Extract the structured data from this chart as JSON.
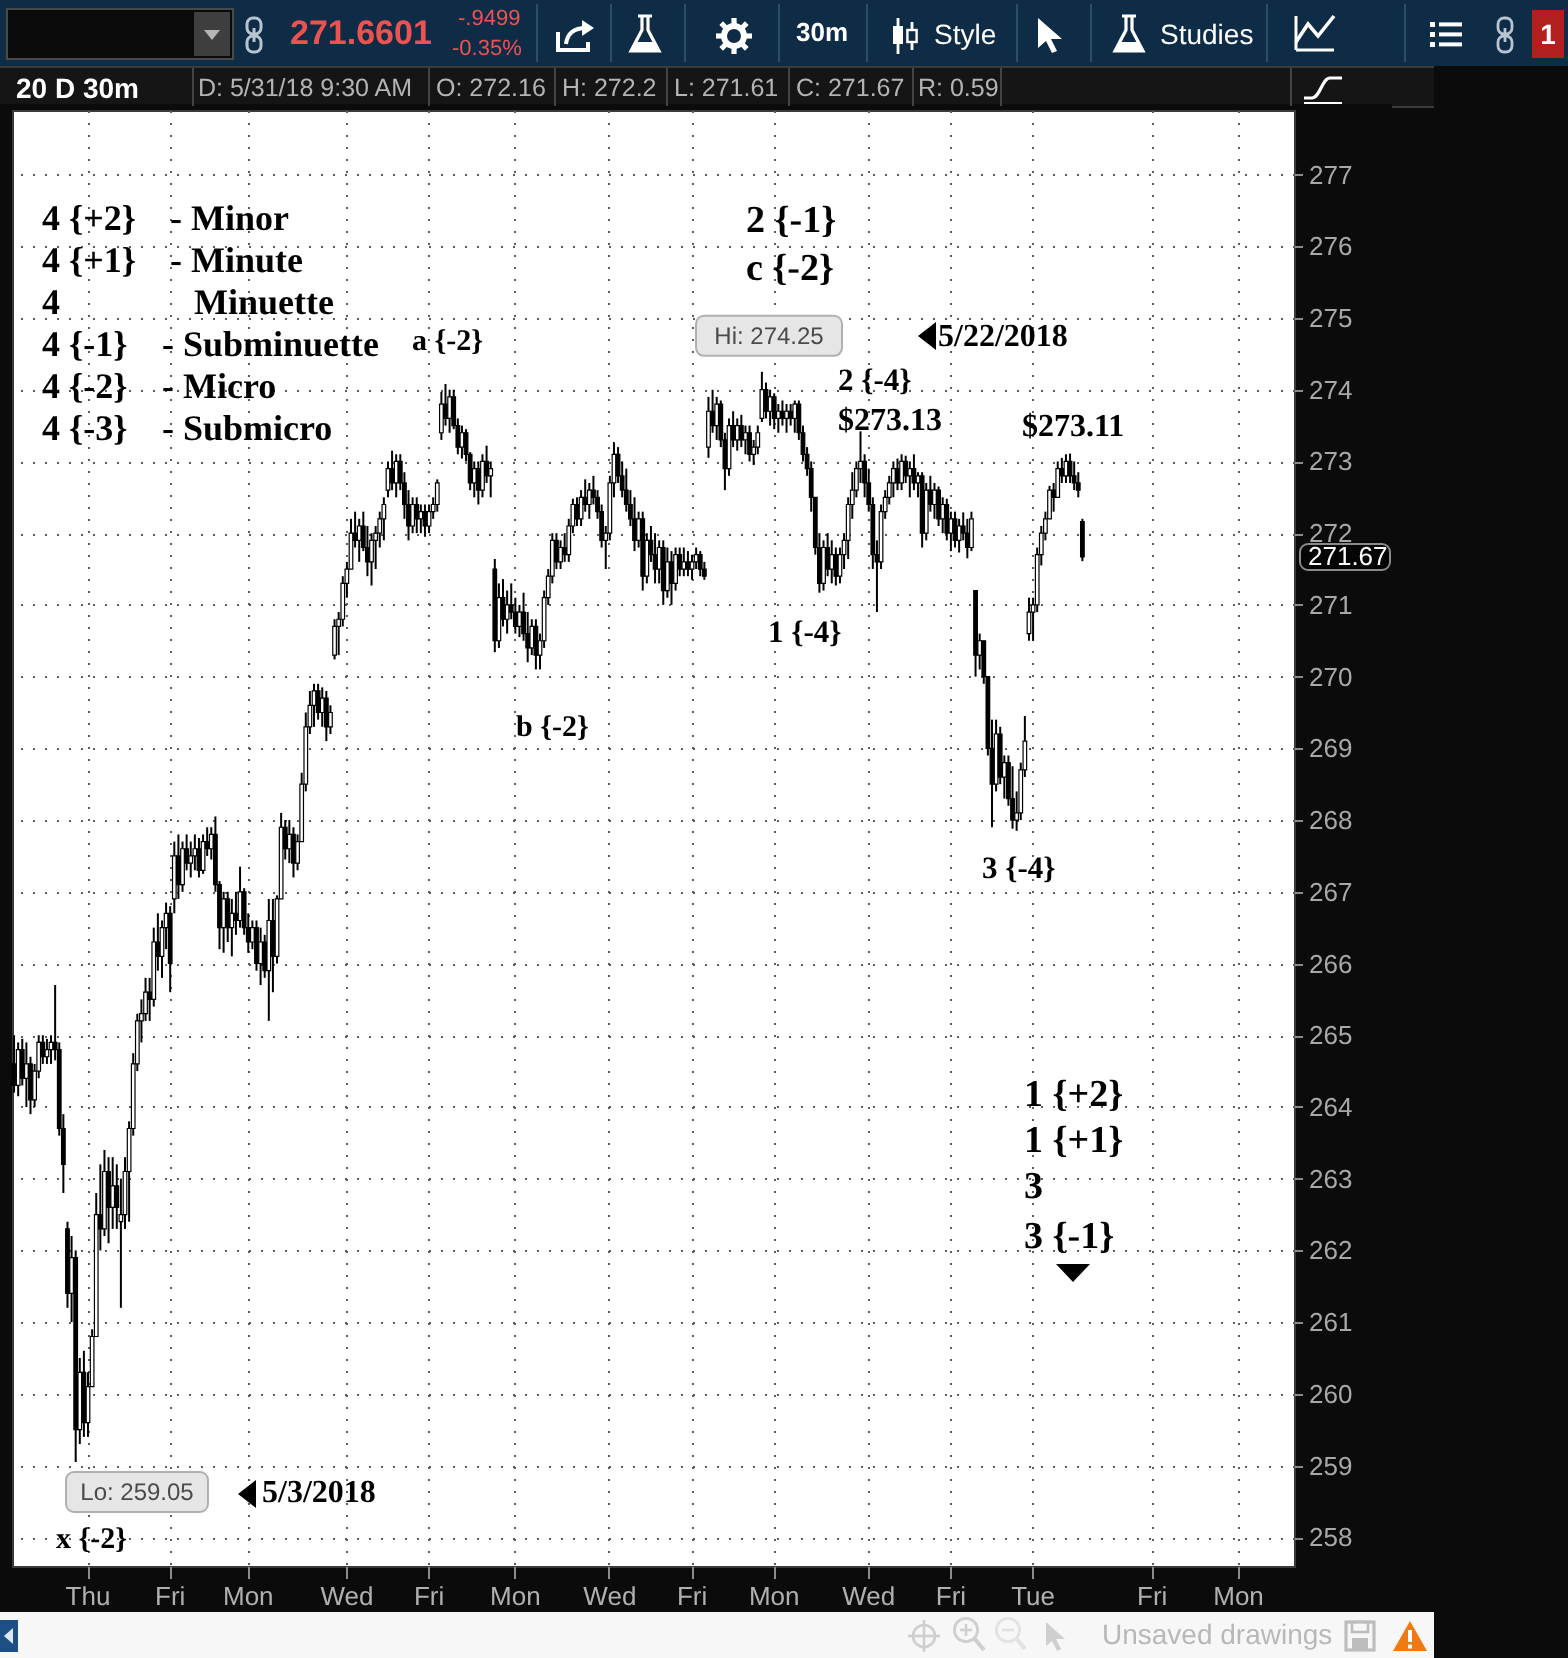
{
  "chart_data": {
    "type": "candlestick",
    "title": "20 D 30m",
    "color": "#000000",
    "grid": true,
    "ylim": [
      257.6,
      277.9
    ],
    "yticks": [
      258,
      259,
      260,
      261,
      262,
      263,
      264,
      265,
      266,
      267,
      268,
      269,
      270,
      271,
      272,
      273,
      274,
      275,
      276,
      277
    ],
    "categories": [
      null,
      null,
      null,
      null,
      null,
      null,
      null,
      null,
      null,
      null,
      null,
      null,
      null,
      null,
      null,
      null,
      null,
      null,
      "Thu",
      null,
      null,
      null,
      null,
      null,
      null,
      null,
      null,
      null,
      null,
      null,
      null,
      null,
      null,
      null,
      null,
      null,
      null,
      null,
      "Fri",
      null,
      null,
      null,
      null,
      null,
      null,
      null,
      null,
      null,
      null,
      null,
      null,
      null,
      null,
      null,
      null,
      null,
      null,
      "Mon",
      null,
      null,
      null,
      null,
      null,
      null,
      null,
      null,
      null,
      null,
      null,
      null,
      null,
      null,
      null,
      null,
      null,
      null,
      null,
      null,
      null,
      null,
      null,
      "Wed",
      null,
      null,
      null,
      null,
      null,
      null,
      null,
      null,
      null,
      null,
      null,
      null,
      null,
      null,
      null,
      null,
      null,
      null,
      null,
      "Fri",
      null,
      null,
      null,
      null,
      null,
      null,
      null,
      null,
      null,
      null,
      null,
      null,
      null,
      null,
      null,
      null,
      null,
      null,
      null,
      null,
      "Mon",
      null,
      null,
      null,
      null,
      null,
      null,
      null,
      null,
      null,
      null,
      null,
      null,
      null,
      null,
      null,
      null,
      null,
      null,
      null,
      null,
      null,
      null,
      "Wed",
      null,
      null,
      null,
      null,
      null,
      null,
      null,
      null,
      null,
      null,
      null,
      null,
      null,
      null,
      null,
      null,
      null,
      null,
      null,
      "Fri",
      null,
      null,
      null,
      null,
      null,
      null,
      null,
      null,
      null,
      null,
      null,
      null,
      null,
      null,
      null,
      null,
      null,
      null,
      null,
      "Mon",
      null,
      null,
      null,
      null,
      null,
      null,
      null,
      null,
      null,
      null,
      null,
      null,
      null,
      null,
      null,
      null,
      null,
      null,
      null,
      null,
      null,
      null,
      "Wed",
      null,
      null,
      null,
      null,
      null,
      null,
      null,
      null,
      null,
      null,
      null,
      null,
      null,
      null,
      null,
      null,
      null,
      null,
      null,
      "Fri",
      null,
      null,
      null,
      null,
      null,
      null,
      null,
      null,
      null,
      null,
      null,
      null,
      null,
      null,
      null,
      null,
      null,
      null,
      null,
      "Tue",
      null,
      null,
      null,
      null,
      null,
      null,
      null,
      null,
      null,
      null,
      null,
      null,
      null,
      null,
      null,
      null,
      null,
      null,
      null,
      null,
      null,
      null,
      null,
      null,
      null,
      null,
      null,
      null,
      "Fri",
      null,
      null,
      null,
      null,
      null,
      null,
      null,
      null,
      null,
      null,
      null,
      null,
      null,
      null,
      null,
      null,
      null,
      null,
      null,
      null,
      "Mon",
      null,
      null,
      null,
      null,
      null,
      null,
      null,
      null,
      null,
      null,
      null,
      null,
      null
    ],
    "ohlc": [
      [
        264.6,
        265.0,
        264.2,
        264.3
      ],
      [
        264.3,
        264.9,
        264.15,
        264.8
      ],
      [
        264.8,
        264.95,
        264.3,
        264.4
      ],
      [
        264.4,
        264.9,
        264.0,
        264.6
      ],
      [
        264.6,
        264.7,
        263.9,
        264.1
      ],
      [
        264.1,
        264.6,
        264.0,
        264.5
      ],
      [
        264.5,
        265.0,
        264.4,
        264.9
      ],
      [
        264.9,
        265.0,
        264.6,
        264.7
      ],
      [
        264.7,
        264.95,
        264.6,
        264.8
      ],
      [
        264.8,
        265.0,
        264.6,
        264.9
      ],
      [
        264.9,
        265.7,
        264.65,
        264.8
      ],
      [
        264.8,
        264.9,
        263.6,
        263.7
      ],
      [
        263.7,
        263.9,
        262.8,
        263.2
      ],
      [
        262.3,
        262.4,
        261.2,
        261.4
      ],
      [
        261.4,
        262.2,
        261.0,
        261.9
      ],
      [
        261.9,
        262.0,
        259.05,
        259.5
      ],
      [
        259.5,
        260.5,
        259.3,
        260.3
      ],
      [
        260.3,
        260.6,
        259.4,
        259.6
      ],
      [
        259.6,
        260.3,
        259.4,
        260.1
      ],
      [
        260.1,
        260.9,
        260.1,
        260.8
      ],
      [
        260.8,
        262.8,
        260.8,
        262.5
      ],
      [
        262.5,
        263.2,
        262.0,
        262.3
      ],
      [
        262.3,
        263.4,
        262.2,
        263.1
      ],
      [
        263.1,
        263.3,
        262.1,
        262.6
      ],
      [
        262.6,
        263.3,
        262.3,
        262.9
      ],
      [
        262.9,
        263.2,
        262.3,
        262.6
      ],
      [
        262.4,
        263.0,
        261.2,
        262.5
      ],
      [
        262.5,
        263.3,
        262.3,
        263.1
      ],
      [
        263.1,
        263.8,
        262.4,
        263.7
      ],
      [
        263.7,
        264.75,
        263.6,
        264.6
      ],
      [
        264.6,
        265.3,
        264.5,
        265.2
      ],
      [
        265.2,
        265.5,
        264.9,
        265.3
      ],
      [
        265.3,
        265.8,
        265.2,
        265.6
      ],
      [
        265.6,
        265.8,
        265.2,
        265.5
      ],
      [
        265.5,
        266.5,
        265.4,
        266.3
      ],
      [
        266.3,
        266.7,
        265.9,
        266.1
      ],
      [
        266.1,
        266.6,
        265.8,
        266.5
      ],
      [
        266.5,
        266.85,
        266.2,
        266.7
      ],
      [
        266.7,
        266.8,
        265.6,
        266.0
      ],
      [
        266.9,
        267.7,
        266.7,
        267.5
      ],
      [
        267.5,
        267.8,
        266.9,
        267.1
      ],
      [
        267.1,
        267.7,
        267.0,
        267.6
      ],
      [
        267.6,
        267.8,
        267.3,
        267.4
      ],
      [
        267.4,
        267.7,
        267.2,
        267.5
      ],
      [
        267.5,
        267.8,
        267.3,
        267.6
      ],
      [
        267.6,
        267.75,
        267.2,
        267.3
      ],
      [
        267.3,
        267.8,
        267.25,
        267.7
      ],
      [
        267.7,
        267.9,
        267.5,
        267.6
      ],
      [
        267.6,
        267.9,
        267.45,
        267.8
      ],
      [
        267.8,
        268.05,
        267.0,
        267.1
      ],
      [
        267.1,
        267.15,
        266.2,
        266.5
      ],
      [
        266.5,
        267.0,
        266.15,
        266.9
      ],
      [
        266.9,
        267.0,
        266.3,
        266.5
      ],
      [
        266.5,
        266.9,
        266.1,
        266.7
      ],
      [
        266.7,
        267.0,
        266.4,
        266.6
      ],
      [
        266.6,
        267.35,
        266.5,
        267.0
      ],
      [
        267.0,
        267.05,
        266.4,
        266.5
      ],
      [
        266.5,
        266.7,
        266.15,
        266.3
      ],
      [
        266.3,
        266.6,
        266.2,
        266.5
      ],
      [
        266.5,
        266.6,
        265.9,
        266.0
      ],
      [
        266.0,
        266.5,
        265.7,
        266.3
      ],
      [
        266.3,
        266.4,
        265.8,
        265.9
      ],
      [
        265.9,
        266.9,
        265.2,
        266.6
      ],
      [
        266.6,
        266.9,
        265.6,
        266.1
      ],
      [
        266.1,
        266.95,
        266.0,
        266.9
      ],
      [
        266.9,
        268.1,
        266.9,
        267.9
      ],
      [
        267.9,
        268.0,
        267.45,
        267.6
      ],
      [
        267.6,
        268.0,
        267.4,
        267.8
      ],
      [
        267.8,
        267.9,
        267.2,
        267.4
      ],
      [
        267.4,
        267.8,
        267.3,
        267.7
      ],
      [
        267.7,
        268.66,
        267.7,
        268.5
      ],
      [
        268.5,
        269.5,
        268.4,
        269.3
      ],
      [
        269.3,
        269.8,
        269.2,
        269.6
      ],
      [
        269.6,
        269.9,
        269.3,
        269.8
      ],
      [
        269.8,
        269.9,
        269.4,
        269.5
      ],
      [
        269.5,
        269.85,
        269.3,
        269.7
      ],
      [
        269.7,
        269.8,
        269.1,
        269.3
      ],
      [
        269.3,
        269.6,
        269.2,
        269.5
      ],
      [
        270.3,
        270.8,
        270.24,
        270.7
      ],
      [
        270.7,
        270.9,
        270.3,
        270.8
      ],
      [
        270.8,
        271.4,
        270.7,
        271.3
      ],
      [
        271.3,
        271.6,
        271.1,
        271.5
      ],
      [
        271.5,
        272.2,
        271.5,
        272.0
      ],
      [
        272.0,
        272.3,
        271.8,
        271.9
      ],
      [
        271.9,
        272.2,
        271.6,
        272.1
      ],
      [
        272.1,
        272.3,
        271.75,
        271.8
      ],
      [
        271.8,
        272.1,
        271.4,
        271.6
      ],
      [
        271.6,
        272.0,
        271.27,
        271.9
      ],
      [
        271.9,
        272.1,
        271.5,
        272.0
      ],
      [
        272.0,
        272.3,
        271.8,
        272.2
      ],
      [
        272.2,
        272.5,
        271.9,
        272.4
      ],
      [
        272.6,
        273.0,
        272.5,
        272.9
      ],
      [
        272.9,
        273.15,
        272.6,
        272.7
      ],
      [
        272.7,
        273.1,
        272.5,
        273.0
      ],
      [
        273.0,
        273.1,
        272.6,
        272.7
      ],
      [
        272.7,
        272.85,
        272.2,
        272.4
      ],
      [
        272.4,
        272.6,
        271.9,
        272.1
      ],
      [
        272.1,
        272.5,
        272.0,
        272.4
      ],
      [
        272.4,
        272.5,
        272.0,
        272.2
      ],
      [
        272.2,
        272.4,
        272.0,
        272.3
      ],
      [
        272.3,
        272.4,
        271.95,
        272.1
      ],
      [
        272.1,
        272.4,
        272.0,
        272.3
      ],
      [
        272.3,
        272.5,
        272.2,
        272.4
      ],
      [
        272.4,
        272.75,
        272.3,
        272.7
      ],
      [
        273.4,
        273.97,
        273.3,
        273.8
      ],
      [
        273.8,
        274.08,
        273.5,
        273.6
      ],
      [
        273.6,
        274.0,
        273.4,
        273.9
      ],
      [
        273.9,
        274.0,
        273.45,
        273.5
      ],
      [
        273.5,
        273.6,
        273.1,
        273.2
      ],
      [
        273.2,
        273.5,
        273.04,
        273.4
      ],
      [
        273.4,
        273.45,
        273.0,
        273.1
      ],
      [
        273.1,
        273.13,
        272.6,
        272.7
      ],
      [
        272.7,
        273.0,
        272.5,
        272.9
      ],
      [
        272.9,
        273.0,
        272.4,
        272.6
      ],
      [
        272.6,
        273.1,
        272.5,
        273.0
      ],
      [
        273.0,
        273.22,
        272.7,
        272.8
      ],
      [
        272.8,
        273.0,
        272.5,
        272.9
      ],
      [
        271.5,
        271.64,
        270.34,
        270.5
      ],
      [
        270.5,
        271.3,
        270.4,
        271.1
      ],
      [
        271.1,
        271.36,
        270.7,
        270.8
      ],
      [
        270.8,
        271.2,
        270.6,
        271.0
      ],
      [
        271.0,
        271.3,
        270.8,
        270.9
      ],
      [
        270.9,
        271.1,
        270.6,
        270.7
      ],
      [
        270.7,
        271.0,
        270.55,
        270.9
      ],
      [
        270.9,
        271.17,
        270.5,
        270.6
      ],
      [
        270.6,
        270.9,
        270.2,
        270.4
      ],
      [
        270.4,
        270.8,
        270.3,
        270.7
      ],
      [
        270.7,
        270.8,
        270.1,
        270.3
      ],
      [
        270.3,
        270.6,
        270.1,
        270.5
      ],
      [
        270.5,
        271.2,
        270.4,
        271.1
      ],
      [
        271.1,
        271.5,
        271.0,
        271.4
      ],
      [
        271.4,
        272.0,
        271.3,
        271.9
      ],
      [
        271.9,
        272.0,
        271.5,
        271.6
      ],
      [
        271.6,
        271.9,
        271.5,
        271.8
      ],
      [
        271.8,
        272.0,
        271.6,
        271.7
      ],
      [
        271.7,
        272.2,
        271.6,
        272.1
      ],
      [
        272.1,
        272.48,
        272.0,
        272.4
      ],
      [
        272.4,
        272.5,
        272.1,
        272.2
      ],
      [
        272.2,
        272.6,
        272.1,
        272.5
      ],
      [
        272.5,
        272.75,
        272.3,
        272.4
      ],
      [
        272.4,
        272.7,
        272.2,
        272.6
      ],
      [
        272.6,
        272.8,
        272.4,
        272.5
      ],
      [
        272.5,
        272.6,
        272.2,
        272.3
      ],
      [
        272.3,
        272.4,
        271.8,
        271.9
      ],
      [
        271.9,
        272.1,
        271.5,
        272.0
      ],
      [
        272.0,
        272.8,
        271.9,
        272.7
      ],
      [
        272.7,
        273.27,
        272.5,
        273.1
      ],
      [
        273.1,
        273.2,
        272.7,
        272.8
      ],
      [
        272.8,
        273.0,
        272.5,
        272.6
      ],
      [
        272.6,
        272.9,
        272.3,
        272.4
      ],
      [
        272.4,
        272.6,
        272.1,
        272.2
      ],
      [
        272.2,
        272.5,
        271.75,
        271.9
      ],
      [
        271.9,
        272.3,
        271.8,
        272.2
      ],
      [
        272.2,
        272.3,
        271.2,
        271.4
      ],
      [
        271.4,
        272.0,
        271.3,
        271.9
      ],
      [
        271.9,
        272.1,
        271.6,
        271.7
      ],
      [
        271.7,
        272.0,
        271.3,
        271.5
      ],
      [
        271.5,
        271.9,
        271.3,
        271.8
      ],
      [
        271.8,
        271.9,
        271.0,
        271.2
      ],
      [
        271.2,
        271.8,
        271.1,
        271.6
      ],
      [
        271.6,
        271.75,
        271.0,
        271.3
      ],
      [
        271.3,
        271.8,
        271.2,
        271.7
      ],
      [
        271.7,
        271.8,
        271.4,
        271.5
      ],
      [
        271.5,
        271.8,
        271.4,
        271.6
      ],
      [
        271.6,
        271.75,
        271.4,
        271.5
      ],
      [
        271.5,
        271.7,
        271.35,
        271.6
      ],
      [
        271.6,
        271.8,
        271.5,
        271.7
      ],
      [
        271.7,
        271.75,
        271.4,
        271.5
      ],
      [
        271.5,
        271.6,
        271.35,
        271.4
      ],
      [
        273.2,
        273.9,
        273.05,
        273.7
      ],
      [
        273.7,
        274.0,
        273.4,
        273.5
      ],
      [
        273.5,
        273.9,
        273.3,
        273.8
      ],
      [
        273.8,
        273.85,
        273.2,
        273.3
      ],
      [
        273.3,
        273.4,
        272.6,
        272.9
      ],
      [
        272.9,
        273.6,
        272.8,
        273.5
      ],
      [
        273.5,
        273.7,
        273.2,
        273.3
      ],
      [
        273.3,
        273.6,
        273.15,
        273.5
      ],
      [
        273.5,
        273.65,
        273.2,
        273.3
      ],
      [
        273.3,
        273.5,
        273.1,
        273.4
      ],
      [
        273.4,
        273.5,
        273.0,
        273.1
      ],
      [
        273.1,
        273.3,
        272.95,
        273.2
      ],
      [
        273.2,
        273.5,
        273.1,
        273.4
      ],
      [
        273.6,
        274.25,
        273.55,
        274.0
      ],
      [
        274.0,
        274.1,
        273.6,
        273.7
      ],
      [
        273.7,
        274.0,
        273.5,
        273.9
      ],
      [
        273.9,
        273.95,
        273.45,
        273.6
      ],
      [
        273.6,
        273.8,
        273.4,
        273.7
      ],
      [
        273.7,
        273.85,
        273.5,
        273.6
      ],
      [
        273.6,
        273.8,
        273.4,
        273.7
      ],
      [
        273.7,
        273.8,
        273.5,
        273.6
      ],
      [
        273.6,
        273.85,
        273.4,
        273.8
      ],
      [
        273.8,
        273.85,
        273.3,
        273.4
      ],
      [
        273.4,
        273.5,
        273.0,
        273.1
      ],
      [
        273.1,
        273.2,
        272.8,
        272.9
      ],
      [
        272.9,
        273.0,
        272.3,
        272.5
      ],
      [
        272.5,
        272.5,
        271.7,
        271.8
      ],
      [
        271.8,
        272.0,
        271.17,
        271.3
      ],
      [
        271.3,
        271.9,
        271.2,
        271.8
      ],
      [
        271.8,
        272.0,
        271.4,
        271.5
      ],
      [
        271.5,
        271.9,
        271.3,
        271.7
      ],
      [
        271.7,
        271.8,
        271.27,
        271.4
      ],
      [
        271.4,
        271.8,
        271.3,
        271.7
      ],
      [
        271.7,
        272.0,
        271.5,
        271.9
      ],
      [
        271.9,
        272.5,
        271.64,
        272.4
      ],
      [
        272.4,
        272.85,
        272.2,
        272.6
      ],
      [
        272.6,
        273.0,
        272.5,
        272.9
      ],
      [
        272.9,
        273.42,
        272.7,
        273.0
      ],
      [
        273.0,
        273.1,
        272.5,
        272.7
      ],
      [
        272.7,
        272.9,
        272.3,
        272.4
      ],
      [
        272.4,
        272.5,
        271.5,
        271.7
      ],
      [
        271.7,
        271.9,
        270.9,
        271.6
      ],
      [
        271.6,
        272.4,
        271.5,
        272.3
      ],
      [
        272.3,
        272.6,
        272.2,
        272.5
      ],
      [
        272.5,
        272.8,
        272.4,
        272.7
      ],
      [
        272.7,
        273.0,
        272.5,
        272.9
      ],
      [
        272.9,
        273.04,
        272.6,
        272.7
      ],
      [
        272.7,
        273.1,
        272.6,
        273.0
      ],
      [
        273.0,
        273.08,
        272.7,
        272.8
      ],
      [
        272.8,
        273.0,
        272.5,
        272.9
      ],
      [
        272.9,
        273.1,
        272.6,
        272.7
      ],
      [
        272.7,
        272.85,
        272.5,
        272.8
      ],
      [
        272.8,
        272.85,
        271.8,
        272.0
      ],
      [
        272.0,
        272.7,
        271.9,
        272.6
      ],
      [
        272.6,
        272.8,
        272.3,
        272.4
      ],
      [
        272.4,
        272.7,
        272.2,
        272.6
      ],
      [
        272.6,
        272.65,
        272.1,
        272.2
      ],
      [
        272.2,
        272.5,
        272.0,
        272.4
      ],
      [
        272.4,
        272.48,
        271.9,
        272.0
      ],
      [
        272.0,
        272.3,
        271.75,
        272.2
      ],
      [
        272.2,
        272.3,
        271.8,
        271.9
      ],
      [
        271.9,
        272.2,
        271.73,
        272.1
      ],
      [
        272.1,
        272.29,
        271.9,
        272.0
      ],
      [
        272.0,
        272.2,
        271.65,
        271.8
      ],
      [
        271.8,
        272.3,
        271.75,
        272.2
      ],
      [
        271.2,
        271.2,
        270.0,
        270.3
      ],
      [
        270.3,
        270.6,
        270.1,
        270.5
      ],
      [
        270.5,
        270.5,
        269.9,
        270.0
      ],
      [
        270.0,
        270.0,
        268.9,
        269.0
      ],
      [
        269.0,
        269.4,
        267.9,
        268.5
      ],
      [
        268.5,
        269.4,
        268.4,
        269.2
      ],
      [
        269.2,
        269.3,
        268.5,
        268.6
      ],
      [
        268.6,
        268.9,
        268.3,
        268.8
      ],
      [
        268.8,
        268.9,
        268.2,
        268.3
      ],
      [
        268.3,
        268.75,
        267.88,
        268.0
      ],
      [
        268.0,
        268.4,
        267.85,
        268.1
      ],
      [
        268.1,
        268.8,
        268.0,
        268.7
      ],
      [
        268.7,
        269.45,
        268.6,
        269.1
      ],
      [
        270.6,
        271.1,
        270.5,
        270.9
      ],
      [
        270.9,
        271.1,
        270.5,
        271.0
      ],
      [
        271.0,
        271.8,
        270.9,
        271.7
      ],
      [
        271.7,
        272.1,
        271.55,
        272.0
      ],
      [
        272.0,
        272.3,
        271.9,
        272.2
      ],
      [
        272.2,
        272.66,
        272.2,
        272.6
      ],
      [
        272.6,
        272.7,
        272.3,
        272.5
      ],
      [
        272.5,
        273.0,
        272.5,
        272.9
      ],
      [
        272.9,
        273.05,
        272.7,
        272.8
      ],
      [
        272.8,
        273.1,
        272.7,
        273.0
      ],
      [
        273.0,
        273.11,
        272.7,
        272.8
      ],
      [
        272.8,
        273.0,
        272.6,
        272.7
      ],
      [
        272.7,
        272.85,
        272.5,
        272.6
      ],
      [
        272.16,
        272.2,
        271.61,
        271.67
      ],
      null,
      null,
      null,
      null,
      null,
      null,
      null,
      null,
      null,
      null,
      null,
      null,
      null,
      null,
      null,
      null,
      null,
      null,
      null,
      null,
      null,
      null,
      null,
      null,
      null,
      null,
      null,
      null,
      null,
      null,
      null,
      null,
      null,
      null,
      null,
      null,
      null,
      null,
      null,
      null,
      null,
      null,
      null,
      null,
      null,
      null,
      null,
      null,
      null,
      null,
      null
    ],
    "annotations": [
      "271.6601",
      "-.9499",
      "-0.35%",
      "30m",
      "Style",
      "Studies",
      "1",
      "D: 5/31/18 9:30 AM",
      "O: 272.16",
      "H: 272.2",
      "L: 271.61",
      "C: 271.67",
      "R: 0.59",
      "4 {+2}",
      "- Minor",
      "4 {+1}",
      "- Minute",
      "4",
      "Minuette",
      "4 {-1}",
      "- Subminuette",
      "4 {-2}",
      "- Micro",
      "4 {-3}",
      "- Submicro",
      "2 {-1}",
      "c {-2}",
      "a {-2}",
      {
        "text": "Hi: 274.25",
        "y": 274.25
      },
      "5/22/2018",
      "2 {-4}",
      "$273.13",
      "$273.11",
      "1 {-4}",
      "b {-2}",
      "3 {-4}",
      "1 {+2}",
      "1 {+1}",
      "3",
      "3 {-1}",
      "Lo: 259.05",
      "5/3/2018",
      "x {-2}",
      "271.67",
      "Unsaved drawings"
    ]
  }
}
